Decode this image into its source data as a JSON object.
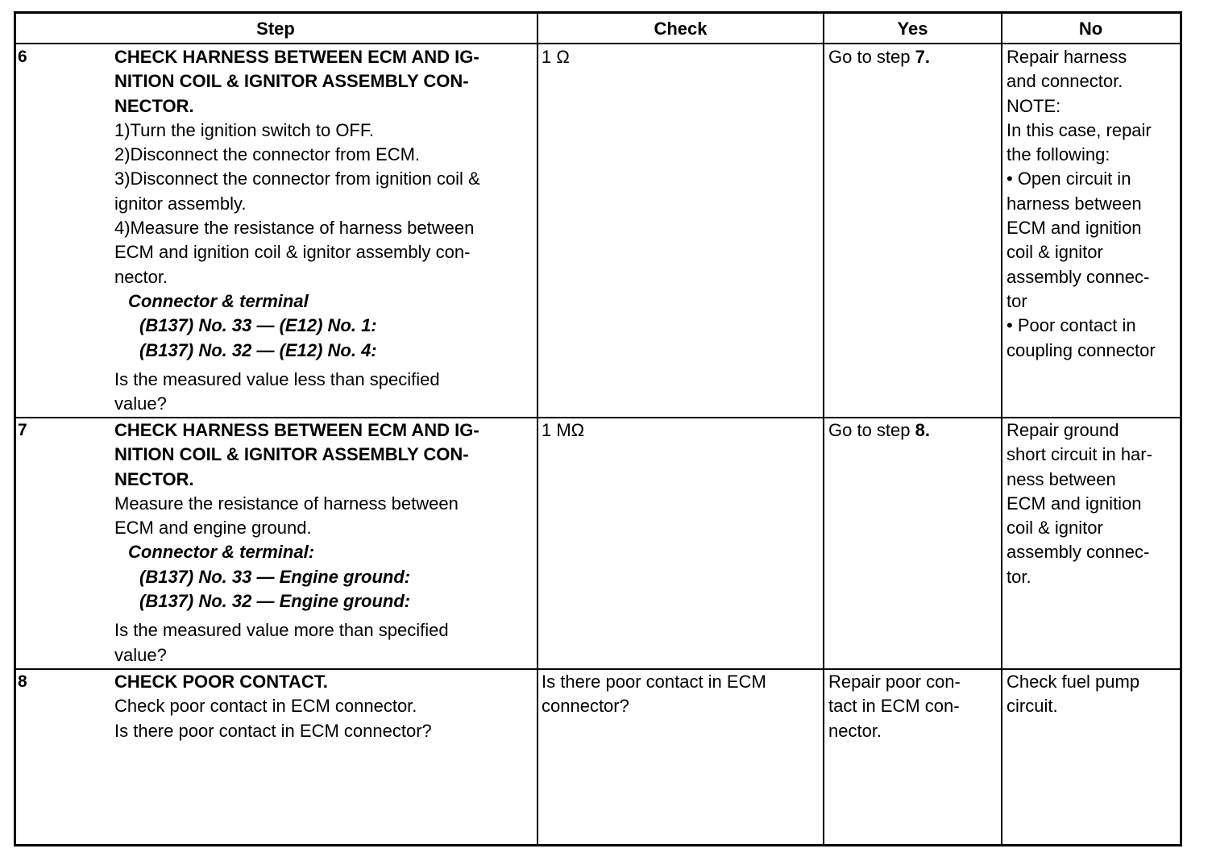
{
  "header": {
    "step": "Step",
    "check": "Check",
    "yes": "Yes",
    "no": "No"
  },
  "rows": [
    {
      "number": "6",
      "step": [
        {
          "t": "CHECK HARNESS BETWEEN ECM AND IG-",
          "s": "b"
        },
        {
          "t": "NITION COIL & IGNITOR ASSEMBLY CON-",
          "s": "b"
        },
        {
          "t": "NECTOR.",
          "s": "b"
        },
        {
          "t": "1)Turn the ignition switch to OFF.",
          "s": ""
        },
        {
          "t": "2)Disconnect the connector from ECM.",
          "s": ""
        },
        {
          "t": "3)Disconnect the connector from ignition coil &",
          "s": ""
        },
        {
          "t": "ignitor assembly.",
          "s": ""
        },
        {
          "t": "4)Measure the resistance of harness between",
          "s": ""
        },
        {
          "t": "ECM and ignition coil & ignitor assembly con-",
          "s": ""
        },
        {
          "t": "nector.",
          "s": ""
        },
        {
          "t": "Connector & terminal",
          "s": "i1"
        },
        {
          "t": "(B137) No. 33 — (E12) No. 1:",
          "s": "i2"
        },
        {
          "t": "(B137) No. 32 — (E12) No. 4:",
          "s": "i2"
        },
        {
          "t": "Is the measured value less than specified",
          "s": "gap"
        },
        {
          "t": "value?",
          "s": ""
        }
      ],
      "check": [
        "1 Ω"
      ],
      "yes": {
        "text": "Go to step ",
        "step": "7."
      },
      "no": [
        "Repair harness",
        "and connector.",
        "NOTE:",
        "In this case, repair",
        "the following:",
        "•  Open circuit in",
        "harness between",
        "ECM and ignition",
        "coil & ignitor",
        "assembly connec-",
        "tor",
        "•  Poor contact in",
        "coupling connector"
      ]
    },
    {
      "number": "7",
      "step": [
        {
          "t": "CHECK HARNESS BETWEEN ECM AND IG-",
          "s": "b"
        },
        {
          "t": "NITION COIL & IGNITOR ASSEMBLY CON-",
          "s": "b"
        },
        {
          "t": "NECTOR.",
          "s": "b"
        },
        {
          "t": "Measure the resistance of harness between",
          "s": ""
        },
        {
          "t": "ECM and engine ground.",
          "s": ""
        },
        {
          "t": "Connector & terminal:",
          "s": "i1"
        },
        {
          "t": "(B137) No. 33 — Engine ground:",
          "s": "i2"
        },
        {
          "t": "(B137) No. 32 — Engine ground:",
          "s": "i2"
        },
        {
          "t": "Is the measured value more than specified",
          "s": "gap"
        },
        {
          "t": "value?",
          "s": ""
        }
      ],
      "check": [
        "1 MΩ"
      ],
      "yes": {
        "text": "Go to step ",
        "step": "8."
      },
      "no": [
        "Repair ground",
        "short circuit in har-",
        "ness between",
        "ECM and ignition",
        "coil & ignitor",
        "assembly connec-",
        "tor."
      ]
    },
    {
      "number": "8",
      "step": [
        {
          "t": "CHECK POOR CONTACT.",
          "s": "b"
        },
        {
          "t": "Check poor contact in ECM connector.",
          "s": ""
        },
        {
          "t": "Is there poor contact in ECM connector?",
          "s": ""
        }
      ],
      "check": [
        "Is there poor contact in ECM",
        "connector?"
      ],
      "yes": {
        "lines": [
          "Repair poor con-",
          "tact in ECM con-",
          "nector."
        ]
      },
      "no": [
        "Check fuel pump",
        "circuit."
      ]
    }
  ]
}
